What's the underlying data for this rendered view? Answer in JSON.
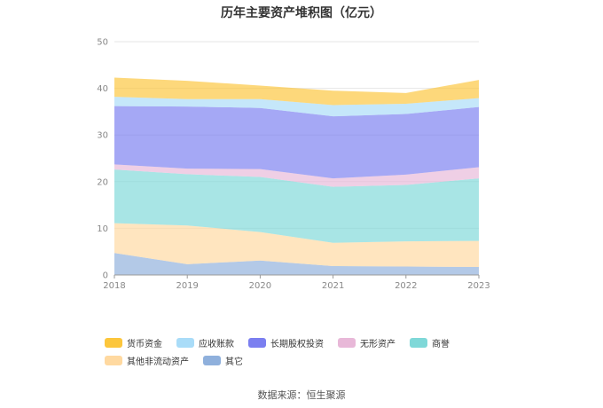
{
  "chart_data": {
    "type": "area",
    "stacked": true,
    "title": "历年主要资产堆积图（亿元）",
    "xlabel": "",
    "ylabel": "",
    "categories": [
      "2018",
      "2019",
      "2020",
      "2021",
      "2022",
      "2023"
    ],
    "yticks": [
      "0",
      "10",
      "20",
      "30",
      "40",
      "50"
    ],
    "ylim": [
      0,
      50
    ],
    "grid": true,
    "legend_position": "bottom",
    "series": [
      {
        "name": "其它",
        "color": "#8fb0dc",
        "values": [
          4.7,
          2.3,
          3.1,
          1.9,
          1.8,
          1.7
        ]
      },
      {
        "name": "其他非流动资产",
        "color": "#ffd9a0",
        "values": [
          6.4,
          8.3,
          6.1,
          5.0,
          5.4,
          5.6
        ]
      },
      {
        "name": "商誉",
        "color": "#7fd8d8",
        "values": [
          11.5,
          11.0,
          11.8,
          12.0,
          12.1,
          13.4
        ]
      },
      {
        "name": "无形资产",
        "color": "#e8b8d8",
        "values": [
          1.1,
          1.2,
          1.7,
          1.8,
          2.2,
          2.4
        ]
      },
      {
        "name": "长期股权投资",
        "color": "#7b7ff0",
        "values": [
          12.5,
          13.3,
          13.1,
          13.3,
          13.0,
          12.9
        ]
      },
      {
        "name": "应收账款",
        "color": "#a9dcf8",
        "values": [
          2.0,
          1.6,
          1.9,
          2.4,
          2.2,
          1.9
        ]
      },
      {
        "name": "货币资金",
        "color": "#fcc63c",
        "values": [
          4.1,
          3.9,
          2.9,
          3.1,
          2.3,
          3.9
        ]
      }
    ],
    "legend_order": [
      "货币资金",
      "应收账款",
      "长期股权投资",
      "无形资产",
      "商誉",
      "其他非流动资产",
      "其它"
    ]
  },
  "source": "数据来源：恒生聚源"
}
